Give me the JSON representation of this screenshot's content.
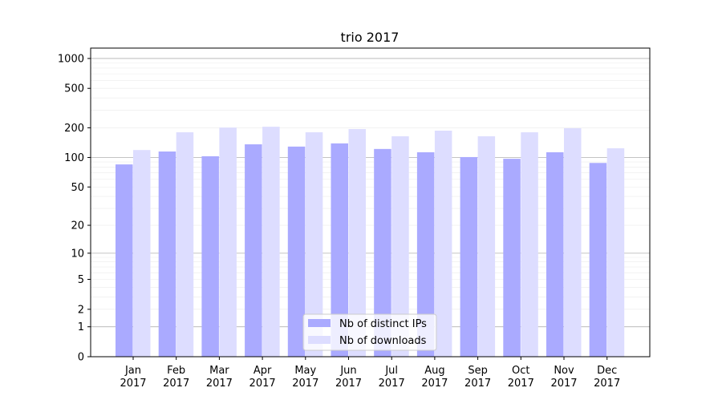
{
  "chart_data": {
    "type": "bar",
    "title": "trio 2017",
    "xlabel": "",
    "ylabel": "",
    "yscale": "symlog (log of 1+y)",
    "ylim": [
      0,
      1300
    ],
    "yticks": [
      0,
      1,
      2,
      5,
      10,
      20,
      50,
      100,
      200,
      500,
      1000
    ],
    "grid": true,
    "legend_position": "bottom-center",
    "categories": [
      [
        "Jan",
        "2017"
      ],
      [
        "Feb",
        "2017"
      ],
      [
        "Mar",
        "2017"
      ],
      [
        "Apr",
        "2017"
      ],
      [
        "May",
        "2017"
      ],
      [
        "Jun",
        "2017"
      ],
      [
        "Jul",
        "2017"
      ],
      [
        "Aug",
        "2017"
      ],
      [
        "Sep",
        "2017"
      ],
      [
        "Oct",
        "2017"
      ],
      [
        "Nov",
        "2017"
      ],
      [
        "Dec",
        "2017"
      ]
    ],
    "series": [
      {
        "name": "Nb of distinct IPs",
        "color": "#aaaaff",
        "values": [
          85,
          115,
          103,
          136,
          129,
          139,
          122,
          113,
          101,
          97,
          113,
          88
        ]
      },
      {
        "name": "Nb of downloads",
        "color": "#ddddff",
        "values": [
          119,
          180,
          201,
          205,
          180,
          194,
          164,
          187,
          164,
          180,
          198,
          124
        ]
      }
    ]
  }
}
